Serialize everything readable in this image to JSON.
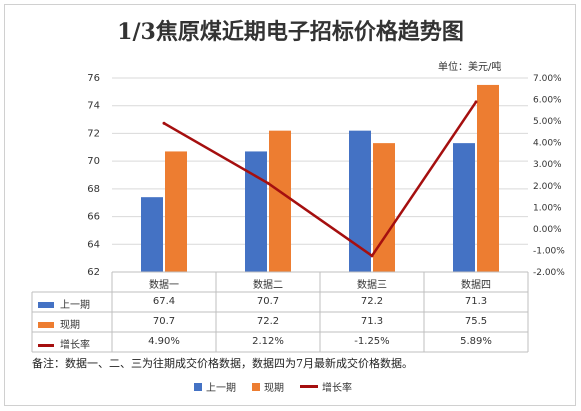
{
  "page": {
    "title": "1/3焦原煤近期电子招标价格趋势图",
    "unit": "单位：美元/吨",
    "note": "备注：数据一、二、三为往期成交价格数据，数据四为7月最新成交价格数据。"
  },
  "colors": {
    "previous": "#4472c4",
    "current": "#ed7d31",
    "growth": "#a50f0f",
    "grid": "#d9d9d9",
    "text": "#333333"
  },
  "chart_data": {
    "type": "bar",
    "title": "1/3焦原煤近期电子招标价格趋势图",
    "categories": [
      "数据一",
      "数据二",
      "数据三",
      "数据四"
    ],
    "series": [
      {
        "name": "上一期",
        "type": "bar",
        "axis": "left",
        "values": [
          67.4,
          70.7,
          72.2,
          71.3
        ],
        "labels": [
          "67.4",
          "70.7",
          "72.2",
          "71.3"
        ]
      },
      {
        "name": "现期",
        "type": "bar",
        "axis": "left",
        "values": [
          70.7,
          72.2,
          71.3,
          75.5
        ],
        "labels": [
          "70.7",
          "72.2",
          "71.3",
          "75.5"
        ]
      },
      {
        "name": "增长率",
        "type": "line",
        "axis": "right",
        "values": [
          4.9,
          2.12,
          -1.25,
          5.89
        ],
        "labels": [
          "4.90%",
          "2.12%",
          "-1.25%",
          "5.89%"
        ]
      }
    ],
    "ylim_left": [
      62,
      76
    ],
    "yticks_left": [
      "62",
      "64",
      "66",
      "68",
      "70",
      "72",
      "74",
      "76"
    ],
    "ylim_right": [
      -2,
      7
    ],
    "yticks_right": [
      "-2.00%",
      "-1.00%",
      "0.00%",
      "1.00%",
      "2.00%",
      "3.00%",
      "4.00%",
      "5.00%",
      "6.00%",
      "7.00%"
    ],
    "grid": true,
    "legend": "bottom",
    "data_table": true
  }
}
